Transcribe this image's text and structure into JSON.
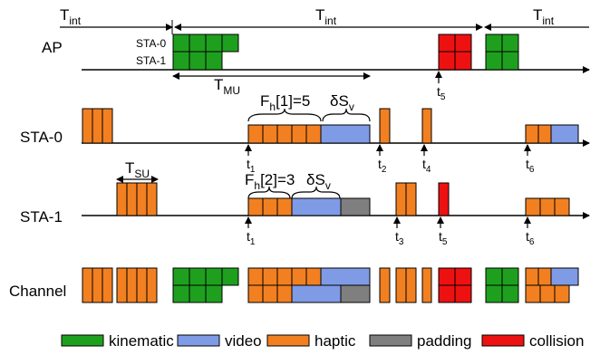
{
  "rows": {
    "ap": "AP",
    "sta0": "STA-0",
    "sta1": "STA-1",
    "channel": "Channel"
  },
  "ap_blocks": {
    "sta0": "STA-0",
    "sta1": "STA-1"
  },
  "intervals": {
    "t_int": "T",
    "t_int_sub": "int",
    "t_mu": "T",
    "t_mu_sub": "MU",
    "t_su": "T",
    "t_su_sub": "SU"
  },
  "annotations": {
    "fh1_pre": "F",
    "fh1_sub": "h",
    "fh1_post": "[1]=5",
    "fh2_pre": "F",
    "fh2_sub": "h",
    "fh2_post": "[2]=3",
    "dsv_pre": "δS",
    "dsv_sub": "v"
  },
  "time_markers": {
    "t": "t",
    "t1": "1",
    "t2": "2",
    "t3": "3",
    "t4": "4",
    "t5": "5",
    "t6": "6"
  },
  "legend": [
    {
      "label": "kinematic",
      "color": "#1ea01e"
    },
    {
      "label": "video",
      "color": "#7f9be6"
    },
    {
      "label": "haptic",
      "color": "#f28020"
    },
    {
      "label": "padding",
      "color": "#7f7f7f"
    },
    {
      "label": "collision",
      "color": "#ee1111"
    }
  ],
  "colors": {
    "kinematic": "#1ea01e",
    "video": "#7f9be6",
    "haptic": "#f28020",
    "padding": "#7f7f7f",
    "collision": "#ee1111"
  }
}
